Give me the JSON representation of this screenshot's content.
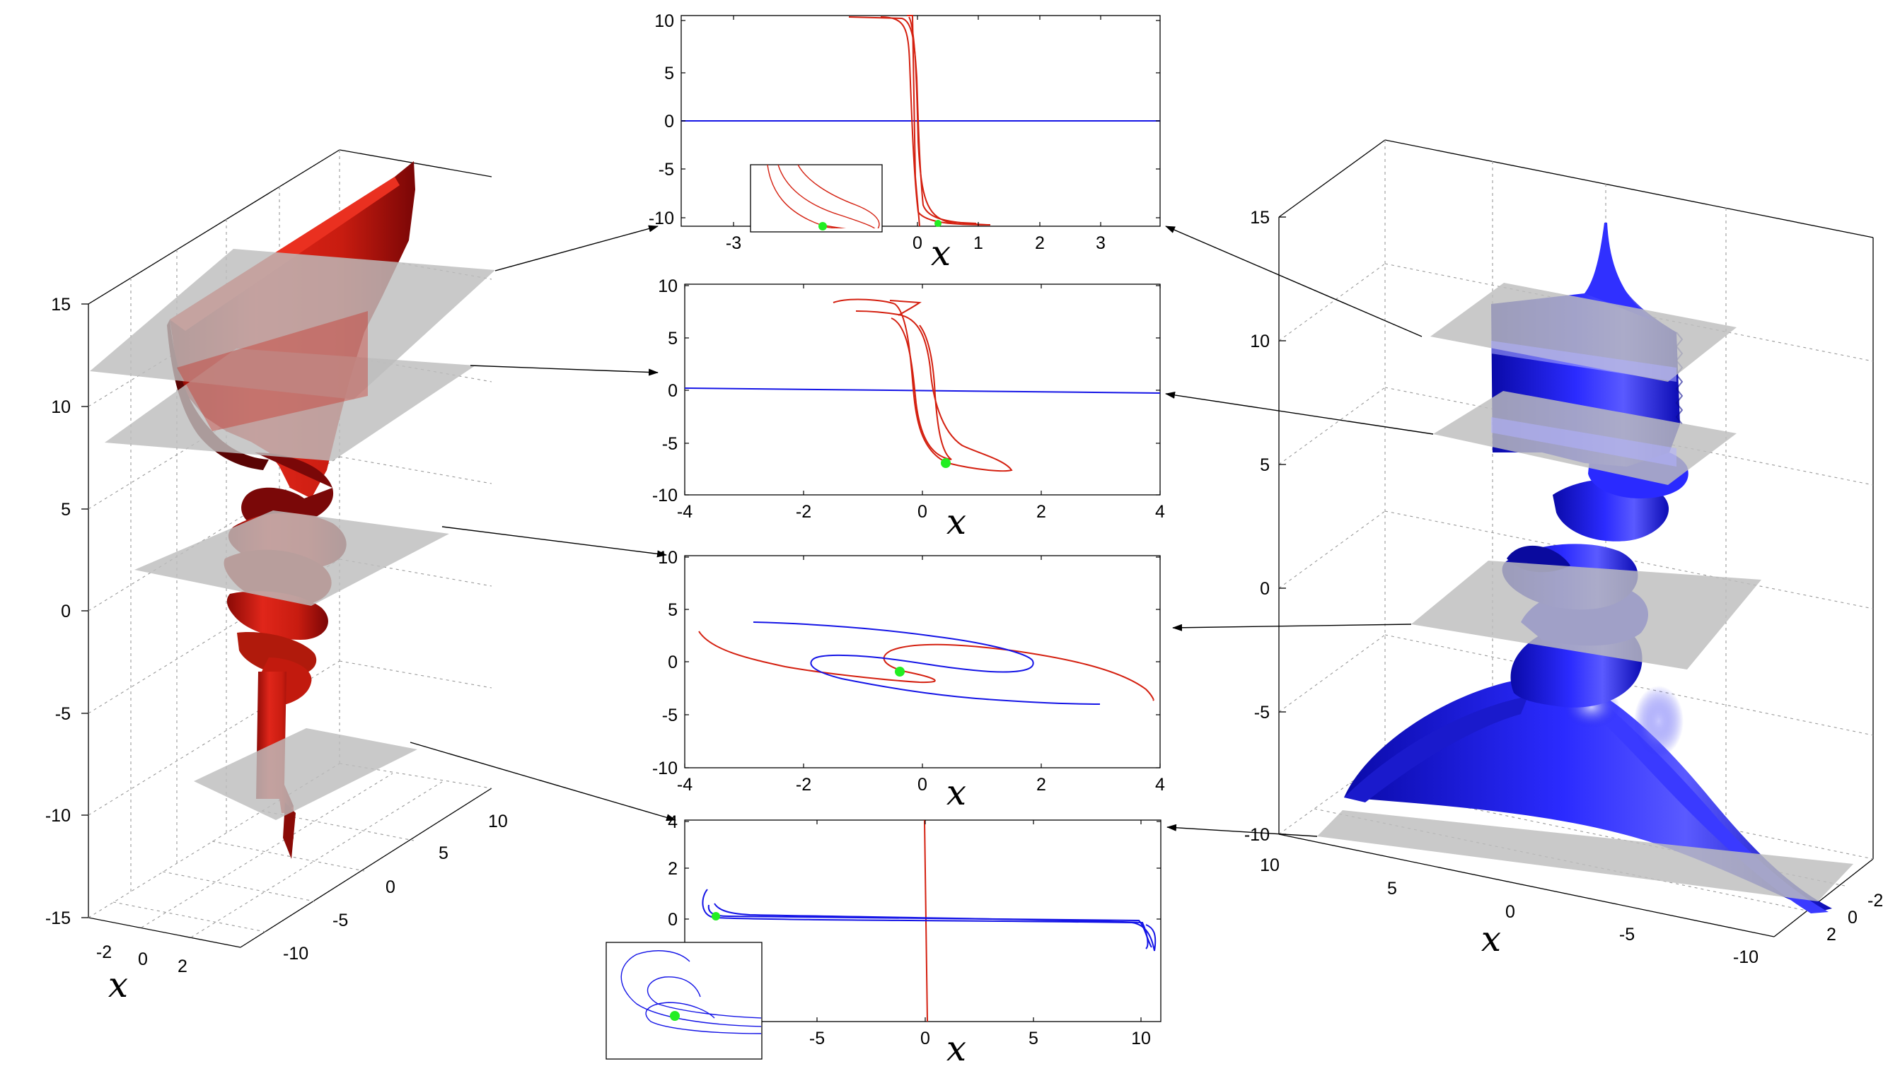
{
  "colors": {
    "red": "#d42010",
    "dark_red": "#6a0606",
    "blue": "#1414e6",
    "plane": "#bdbdbd",
    "marker": "#22ee22",
    "arrow": "#000000"
  },
  "chart_data": [
    {
      "id": "left-3d",
      "type": "surface3d",
      "surface_color": "red",
      "z_ticks": [
        "15",
        "10",
        "5",
        "0",
        "-5",
        "-10",
        "-15"
      ],
      "x_ticks": [
        "-2",
        "0",
        "2"
      ],
      "y_ticks": [
        "10",
        "5",
        "0",
        "-5",
        "-10"
      ],
      "xlabel": "x",
      "grid": true
    },
    {
      "id": "right-3d",
      "type": "surface3d",
      "surface_color": "blue",
      "z_ticks": [
        "15",
        "10",
        "5",
        "0",
        "-5",
        "-10"
      ],
      "y_ticks": [
        "10",
        "5",
        "0",
        "-5",
        "-10"
      ],
      "x_ticks": [
        "-2",
        "0",
        "2"
      ],
      "xlabel": "x",
      "grid": true
    },
    {
      "id": "panel-1",
      "type": "line",
      "xlabel": "x",
      "x_ticks": [
        "-3",
        "0",
        "1",
        "2",
        "3"
      ],
      "y_ticks": [
        "10",
        "5",
        "0",
        "-5",
        "-10"
      ],
      "xlim": [
        -4,
        4
      ],
      "ylim": [
        -10,
        10
      ],
      "inset": true,
      "marker": [
        0.4,
        -9.9
      ]
    },
    {
      "id": "panel-2",
      "type": "line",
      "xlabel": "x",
      "x_ticks": [
        "-4",
        "-2",
        "0",
        "2",
        "4"
      ],
      "y_ticks": [
        "10",
        "5",
        "0",
        "-5",
        "-10"
      ],
      "xlim": [
        -4,
        4
      ],
      "ylim": [
        -10,
        10
      ],
      "marker": [
        0.4,
        -6.8
      ]
    },
    {
      "id": "panel-3",
      "type": "line",
      "xlabel": "x",
      "x_ticks": [
        "-4",
        "-2",
        "0",
        "2",
        "4"
      ],
      "y_ticks": [
        "10",
        "5",
        "0",
        "-5",
        "-10"
      ],
      "xlim": [
        -4,
        4
      ],
      "ylim": [
        -10,
        10
      ],
      "marker": [
        -0.4,
        -0.9
      ]
    },
    {
      "id": "panel-4",
      "type": "line",
      "xlabel": "x",
      "x_ticks": [
        "-5",
        "0",
        "5",
        "10"
      ],
      "y_ticks": [
        "4",
        "2",
        "0"
      ],
      "xlim": [
        -11,
        11
      ],
      "ylim": [
        -4,
        4
      ],
      "inset": true,
      "marker": [
        -9.6,
        0.2
      ]
    }
  ]
}
